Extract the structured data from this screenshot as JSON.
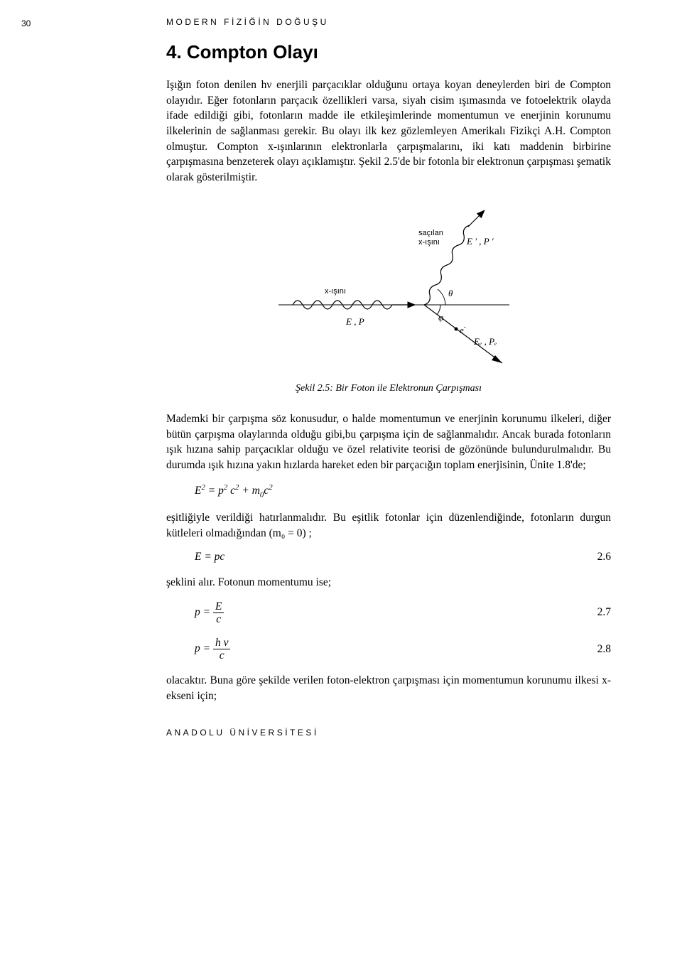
{
  "page_number": "30",
  "running_header": "MODERN  FİZİĞİN  DOĞUŞU",
  "section_title": "4. Compton Olayı",
  "para1": "Işığın foton denilen hν  enerjili parçacıklar olduğunu ortaya koyan deneylerden biri de Compton olayıdır. Eğer fotonların parçacık özellikleri varsa, siyah cisim ışımasında ve fotoelektrik olayda ifade edildiği gibi, fotonların madde ile etkileşimlerinde momentumun ve enerjinin korunumu ilkelerinin de sağlanması gerekir. Bu olayı ilk kez gözlemleyen Amerikalı Fizikçi A.H. Compton olmuştur. Compton x-ışınlarının elektronlarla çarpışmalarını, iki katı maddenin birbirine çarpışmasına benzeterek olayı açıklamıştır. Şekil 2.5'de bir fotonla bir elektronun çarpışması şematik olarak gösterilmiştir.",
  "figure": {
    "caption": "Şekil 2.5: Bir Foton ile Elektronun Çarpışması",
    "labels": {
      "scattered": "saçılan",
      "xray_top": "x-ışını",
      "xray_left": "x-ışını",
      "E_P": "E , P",
      "Ep_Pp": "E ′ , P ′",
      "theta": "θ",
      "phi": "φ",
      "electron": "e",
      "electron_sup": "-",
      "Ee_Pe": "Eₑ , Pₑ"
    },
    "colors": {
      "stroke": "#000000",
      "background": "#ffffff"
    }
  },
  "para2": "Mademki bir çarpışma söz konusudur, o halde momentumun ve enerjinin korunumu ilkeleri, diğer bütün çarpışma olaylarında olduğu gibi,bu çarpışma için de sağlanmalıdır. Ancak burada fotonların ışık hızına sahip parçacıklar olduğu ve özel relativite teorisi de gözönünde bulundurulmalıdır. Bu durumda ışık hızına yakın hızlarda hareket eden bir parçacığın toplam enerjisinin, Ünite 1.8'de;",
  "eq1_html": "<i>E</i><sup>2</sup> = <i>p</i><sup>2</sup> <i>c</i><sup>2</sup> + <i>m</i><sub>0</sub><i>c</i><sup>2</sup>",
  "para3": "eşitliğiyle verildiği hatırlanmalıdır. Bu eşitlik fotonlar için düzenlendiğinde, fotonların durgun kütleleri olmadığından  (m₀ = 0) ;",
  "eq2": {
    "lhs": "E = pc",
    "num": "2.6"
  },
  "para4": "şeklini alır. Fotonun momentumu ise;",
  "eq3": {
    "prefix": "p = ",
    "num_top": "E",
    "num_bot": "c",
    "num": "2.7"
  },
  "eq4": {
    "prefix": "p = ",
    "num_top": "h ν",
    "num_bot": "c",
    "num": "2.8"
  },
  "para5": "olacaktır. Buna göre şekilde verilen foton-elektron çarpışması için momentumun korunumu ilkesi x-ekseni için;",
  "footer": "ANADOLU  ÜNİVERSİTESİ"
}
